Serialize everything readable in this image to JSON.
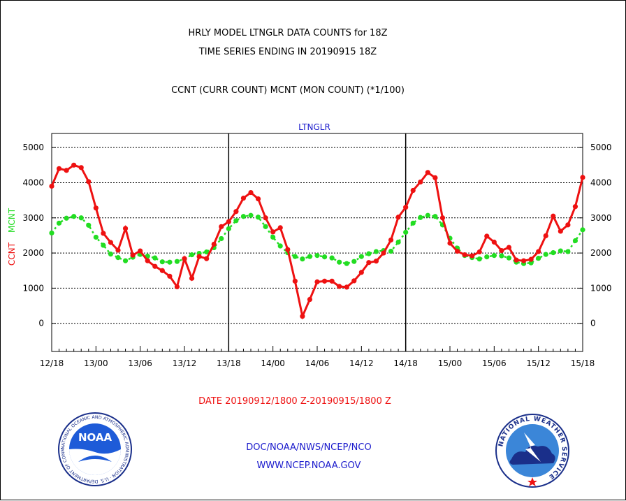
{
  "header": {
    "title_line1": "HRLY MODEL LTNGLR DATA COUNTS for 18Z",
    "title_line2": "TIME SERIES ENDING IN 20190915 18Z",
    "subtitle": "CCNT (CURR COUNT) MCNT (MON COUNT) (*1/100)"
  },
  "footer": {
    "date_range": "DATE 20190912/1800 Z-20190915/1800 Z",
    "org_path": "DOC/NOAA/NWS/NCEP/NCO",
    "url": "WWW.NCEP.NOAA.GOV"
  },
  "logos": {
    "noaa_text": "NOAA",
    "noaa_ring": "NATIONAL OCEANIC AND ATMOSPHERIC ADMINISTRATION · U.S. DEPARTMENT OF COMMERCE ·",
    "nws_ring": "NATIONAL WEATHER SERVICE"
  },
  "colors": {
    "ccnt": "#ee1111",
    "mcnt": "#22dd22",
    "title_blue": "#1a1acc",
    "date_red": "#ee1111"
  },
  "chart_data": {
    "type": "line",
    "title": "LTNGLR",
    "ylabel_left": [
      "CCNT",
      "MCNT"
    ],
    "ylim": [
      -800,
      5400
    ],
    "yticks": [
      0,
      1000,
      2000,
      3000,
      4000,
      5000
    ],
    "y_gridlines": [
      0,
      1000,
      2000,
      3000,
      4000,
      5000
    ],
    "xlim": [
      0,
      72
    ],
    "x_ticks": [
      {
        "h": 0,
        "label": "12/18"
      },
      {
        "h": 6,
        "label": "13/00"
      },
      {
        "h": 12,
        "label": "13/06"
      },
      {
        "h": 18,
        "label": "13/12"
      },
      {
        "h": 24,
        "label": "13/18"
      },
      {
        "h": 30,
        "label": "14/00"
      },
      {
        "h": 36,
        "label": "14/06"
      },
      {
        "h": 42,
        "label": "14/12"
      },
      {
        "h": 48,
        "label": "14/18"
      },
      {
        "h": 54,
        "label": "15/00"
      },
      {
        "h": 60,
        "label": "15/06"
      },
      {
        "h": 66,
        "label": "15/12"
      },
      {
        "h": 72,
        "label": "15/18"
      }
    ],
    "day_separators": [
      24,
      48
    ],
    "series": [
      {
        "name": "CCNT",
        "values": [
          3900,
          4400,
          4350,
          4500,
          4430,
          4030,
          3280,
          2560,
          2300,
          2080,
          2700,
          1940,
          2060,
          1780,
          1620,
          1500,
          1340,
          1040,
          1840,
          1280,
          1900,
          1840,
          2250,
          2750,
          2890,
          3180,
          3560,
          3720,
          3540,
          3000,
          2600,
          2720,
          2100,
          1200,
          200,
          680,
          1180,
          1200,
          1200,
          1050,
          1030,
          1210,
          1450,
          1730,
          1770,
          2000,
          2370,
          3020,
          3300,
          3780,
          4020,
          4290,
          4140,
          3000,
          2280,
          2050,
          1950,
          1920,
          2030,
          2480,
          2310,
          2070,
          2160,
          1800,
          1780,
          1820,
          2040,
          2490,
          3050,
          2620,
          2800,
          3320,
          4150
        ]
      },
      {
        "name": "MCNT",
        "values": [
          2570,
          2850,
          2990,
          3040,
          3000,
          2790,
          2450,
          2220,
          1970,
          1870,
          1780,
          1880,
          1960,
          1910,
          1860,
          1750,
          1740,
          1760,
          1830,
          1950,
          1990,
          2030,
          2150,
          2410,
          2690,
          2920,
          3040,
          3070,
          3020,
          2750,
          2450,
          2200,
          2010,
          1900,
          1830,
          1900,
          1930,
          1890,
          1860,
          1740,
          1700,
          1760,
          1900,
          1980,
          2040,
          2070,
          2050,
          2310,
          2590,
          2850,
          3010,
          3070,
          3040,
          2800,
          2420,
          2140,
          1930,
          1870,
          1830,
          1890,
          1930,
          1920,
          1860,
          1740,
          1700,
          1720,
          1850,
          1960,
          2010,
          2060,
          2040,
          2350,
          2660
        ]
      }
    ]
  }
}
